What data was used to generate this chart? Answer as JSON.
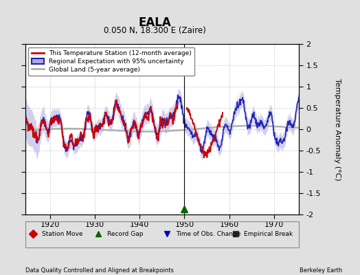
{
  "title": "EALA",
  "subtitle": "0.050 N, 18.300 E (Zaire)",
  "ylabel": "Temperature Anomaly (°C)",
  "ylim": [
    -2,
    2
  ],
  "xlim": [
    1914.5,
    1975.5
  ],
  "xticks": [
    1920,
    1930,
    1940,
    1950,
    1960,
    1970
  ],
  "yticks": [
    -2,
    -1.5,
    -1,
    -0.5,
    0,
    0.5,
    1,
    1.5,
    2
  ],
  "bg_color": "#e0e0e0",
  "plot_bg_color": "#ffffff",
  "footer_left": "Data Quality Controlled and Aligned at Breakpoints",
  "footer_right": "Berkeley Earth",
  "legend_items": [
    {
      "label": "This Temperature Station (12-month average)",
      "color": "#cc0000",
      "lw": 2
    },
    {
      "label": "Regional Expectation with 95% uncertainty",
      "color": "#2222bb",
      "lw": 2
    },
    {
      "label": "Global Land (5-year average)",
      "color": "#aaaaaa",
      "lw": 2
    }
  ],
  "marker_legend": [
    {
      "label": "Station Move",
      "marker": "D",
      "color": "#cc0000"
    },
    {
      "label": "Record Gap",
      "marker": "^",
      "color": "#006600"
    },
    {
      "label": "Time of Obs. Change",
      "marker": "v",
      "color": "#0000cc"
    },
    {
      "label": "Empirical Break",
      "marker": "s",
      "color": "#333333"
    }
  ],
  "record_gap_x": 1950,
  "vertical_line_x": 1950,
  "blue_fill_color": "#aaaadd",
  "blue_line_color": "#2222bb",
  "red_line_color": "#cc0000",
  "gray_line_color": "#b0b0b0"
}
